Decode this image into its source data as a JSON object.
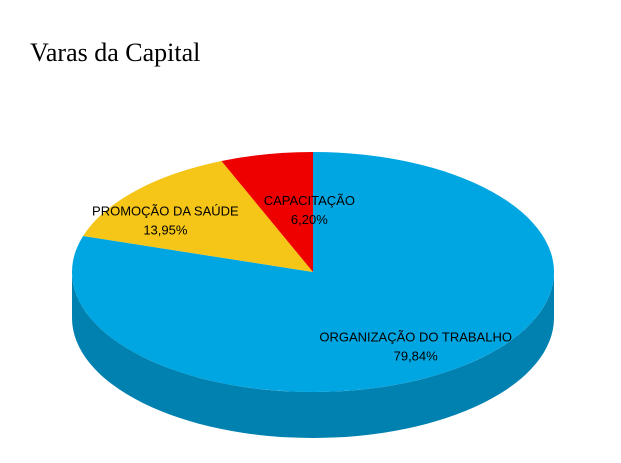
{
  "chart_data": {
    "type": "pie",
    "title": "Varas da Capital",
    "slices": [
      {
        "label": "ORGANIZAÇÃO DO TRABALHO",
        "value_label": "79,84%",
        "value": 79.84,
        "color": "#00A6E2"
      },
      {
        "label": "PROMOÇÃO DA SAÚDE",
        "value_label": "13,95%",
        "value": 13.95,
        "color": "#F5C518"
      },
      {
        "label": "CAPACITAÇÃO",
        "value_label": "6,20%",
        "value": 6.2,
        "color": "#EE0000"
      }
    ],
    "style": "3d",
    "legend": "none"
  }
}
